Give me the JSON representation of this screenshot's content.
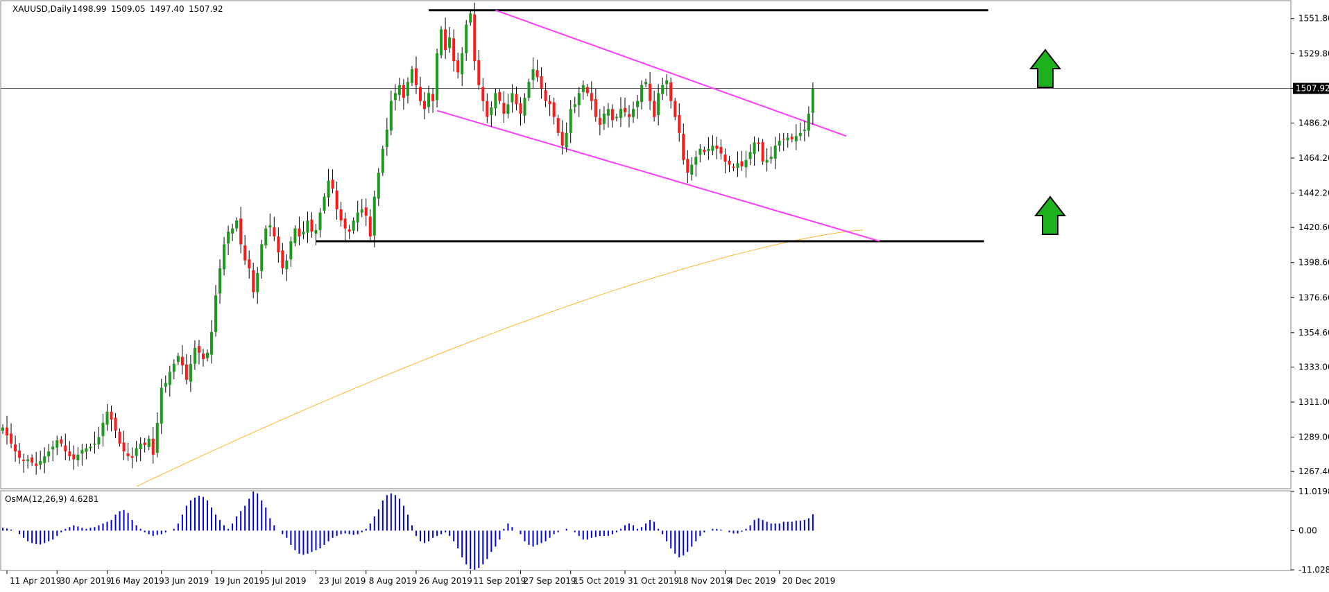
{
  "symbol_label": "XAUUSD,Daily",
  "ohlc": {
    "open": "1498.99",
    "high": "1509.05",
    "low": "1497.40",
    "close": "1507.92"
  },
  "osma_label": "OsMA(12,26,9) 4.6281",
  "colors": {
    "up": "#1d9a1d",
    "down": "#ff1a1a",
    "channel": "#ff3cff",
    "ma": "#ffb52b",
    "histogram": "#0000dd",
    "arrow": "#1db11d",
    "level": "#000000"
  },
  "chart_data": [
    {
      "type": "candlestick",
      "title": "XAUUSD,Daily",
      "ylim": [
        1256.6,
        1563.0
      ],
      "y_ticks": [
        "1551.80",
        "1529.80",
        "1508.00",
        "1486.20",
        "1464.20",
        "1442.20",
        "1420.60",
        "1398.60",
        "1376.60",
        "1354.60",
        "1333.00",
        "1311.00",
        "1289.00",
        "1267.40"
      ],
      "current_price": "1507.92",
      "x_tick_labels": [
        "11 Apr 2019",
        "30 Apr 2019",
        "16 May 2019",
        "3 Jun 2019",
        "19 Jun 2019",
        "5 Jul 2019",
        "23 Jul 2019",
        "8 Aug 2019",
        "26 Aug 2019",
        "11 Sep 2019",
        "27 Sep 2019",
        "15 Oct 2019",
        "31 Oct 2019",
        "18 Nov 2019",
        "4 Dec 2019",
        "20 Dec 2019"
      ],
      "resistance": 1557.0,
      "support": 1412.0,
      "channel_upper": [
        [
          118,
          1557
        ],
        [
          202,
          1478
        ]
      ],
      "channel_lower": [
        [
          104,
          1494
        ],
        [
          210,
          1412
        ]
      ],
      "sma_start": [
        [
          32,
          1258
        ],
        [
          206,
          1419
        ]
      ],
      "closes": [
        1295,
        1290,
        1285,
        1280,
        1276,
        1274,
        1275,
        1273,
        1271,
        1274,
        1277,
        1280,
        1283,
        1287,
        1285,
        1280,
        1277,
        1275,
        1278,
        1281,
        1282,
        1283,
        1285,
        1289,
        1298,
        1305,
        1300,
        1293,
        1285,
        1280,
        1277,
        1276,
        1282,
        1285,
        1284,
        1288,
        1278,
        1298,
        1320,
        1323,
        1330,
        1335,
        1340,
        1334,
        1325,
        1335,
        1345,
        1342,
        1338,
        1342,
        1355,
        1378,
        1395,
        1410,
        1418,
        1420,
        1425,
        1410,
        1400,
        1395,
        1380,
        1392,
        1410,
        1420,
        1422,
        1415,
        1405,
        1395,
        1400,
        1412,
        1420,
        1415,
        1418,
        1425,
        1418,
        1419,
        1430,
        1440,
        1450,
        1445,
        1432,
        1425,
        1420,
        1418,
        1425,
        1430,
        1432,
        1428,
        1415,
        1440,
        1455,
        1470,
        1482,
        1500,
        1505,
        1510,
        1502,
        1512,
        1520,
        1510,
        1500,
        1495,
        1505,
        1500,
        1530,
        1545,
        1532,
        1540,
        1525,
        1518,
        1530,
        1548,
        1555,
        1525,
        1510,
        1500,
        1490,
        1496,
        1505,
        1500,
        1492,
        1498,
        1505,
        1498,
        1492,
        1502,
        1512,
        1520,
        1515,
        1508,
        1500,
        1498,
        1490,
        1480,
        1472,
        1480,
        1495,
        1498,
        1505,
        1510,
        1505,
        1500,
        1490,
        1485,
        1492,
        1495,
        1488,
        1490,
        1495,
        1493,
        1490,
        1495,
        1500,
        1510,
        1512,
        1500,
        1490,
        1505,
        1510,
        1513,
        1500,
        1490,
        1480,
        1463,
        1455,
        1460,
        1465,
        1470,
        1468,
        1470,
        1472,
        1470,
        1467,
        1462,
        1460,
        1458,
        1461,
        1459,
        1463,
        1468,
        1474,
        1473,
        1462,
        1463,
        1465,
        1472,
        1475,
        1476,
        1477,
        1476,
        1478,
        1480,
        1482,
        1492,
        1507.92
      ],
      "osma": [
        0.8,
        0.6,
        0.3,
        0.0,
        -1.0,
        -2.0,
        -3.0,
        -3.5,
        -3.8,
        -3.9,
        -3.5,
        -3.0,
        -2.5,
        -1.5,
        -0.5,
        0.5,
        1.0,
        1.5,
        1.2,
        0.8,
        0.5,
        0.8,
        1.0,
        1.5,
        2.0,
        2.5,
        3.0,
        4.5,
        5.5,
        5.8,
        5.0,
        3.0,
        1.5,
        0.5,
        -0.5,
        -1.0,
        -1.5,
        -1.2,
        -1.0,
        -0.5,
        0.0,
        0.5,
        2.0,
        4.5,
        7.0,
        8.5,
        9.3,
        9.8,
        9.5,
        8.5,
        6.5,
        4.5,
        3.0,
        1.5,
        0.5,
        2.0,
        4.0,
        5.5,
        7.0,
        9.0,
        11.0,
        10.5,
        8.5,
        6.5,
        3.5,
        1.5,
        0.0,
        -1.0,
        -2.0,
        -4.0,
        -5.5,
        -6.5,
        -6.8,
        -6.5,
        -6.0,
        -5.5,
        -5.0,
        -4.0,
        -3.0,
        -2.0,
        -1.5,
        -1.0,
        -0.8,
        -1.0,
        -1.2,
        -1.0,
        -0.5,
        0.5,
        2.0,
        4.0,
        6.0,
        8.5,
        10.0,
        10.5,
        10.0,
        9.0,
        7.0,
        4.5,
        1.5,
        -1.5,
        -3.0,
        -3.5,
        -3.0,
        -2.0,
        -1.5,
        -1.0,
        -0.5,
        -1.5,
        -3.0,
        -5.0,
        -7.5,
        -9.5,
        -10.8,
        -11.0,
        -10.5,
        -9.5,
        -8.0,
        -6.0,
        -4.5,
        -2.5,
        0.5,
        2.0,
        1.0,
        0.0,
        -1.0,
        -3.0,
        -4.0,
        -4.5,
        -4.0,
        -3.5,
        -3.0,
        -2.0,
        -1.0,
        -0.5,
        0.0,
        0.5,
        0.0,
        -0.5,
        -1.5,
        -2.5,
        -2.5,
        -2.0,
        -1.8,
        -1.5,
        -1.5,
        -1.5,
        -1.0,
        -0.5,
        0.5,
        1.5,
        2.0,
        1.5,
        0.5,
        1.0,
        2.0,
        3.0,
        2.5,
        0.5,
        -1.0,
        -3.0,
        -5.0,
        -6.5,
        -7.5,
        -7.0,
        -6.0,
        -4.5,
        -3.0,
        -1.5,
        -0.5,
        0.0,
        0.5,
        0.5,
        0.3,
        0.0,
        -0.5,
        -0.8,
        -0.8,
        -0.3,
        0.5,
        1.5,
        3.0,
        3.5,
        3.0,
        2.5,
        2.0,
        2.0,
        2.0,
        2.5,
        2.5,
        2.5,
        2.8,
        2.8,
        3.0,
        3.5,
        4.6281
      ]
    },
    {
      "type": "bar",
      "title": "OsMA(12,26,9) 4.6281",
      "ylim": [
        -11.0283,
        11.0198
      ],
      "y_ticks": [
        "11.0198",
        "0.00",
        "-11.0283"
      ]
    }
  ]
}
